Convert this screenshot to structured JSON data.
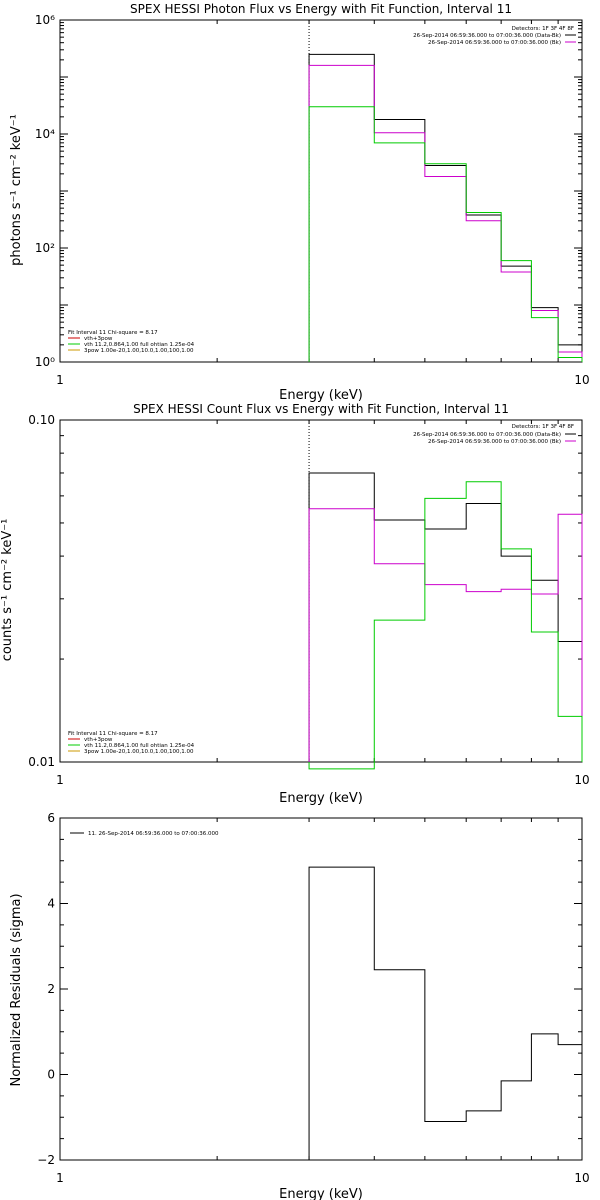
{
  "colors": {
    "background": "#ffffff",
    "axes": "#000000",
    "black_series": "#000000",
    "magenta_series": "#cc00cc",
    "green_series": "#00cc00",
    "red_series": "#cc0000",
    "orange_series": "#cc9900"
  },
  "chart_data": [
    {
      "type": "line",
      "title": "SPEX HESSI Photon Flux vs Energy with Fit Function, Interval 11",
      "xlabel": "Energy (keV)",
      "ylabel": "photons s⁻¹ cm⁻² keV⁻¹",
      "xscale": "log",
      "yscale": "log",
      "xlim": [
        1,
        10
      ],
      "ylim": [
        1,
        1000000
      ],
      "x_ticks": [
        {
          "value": 1,
          "label": "1"
        },
        {
          "value": 10,
          "label": "10"
        }
      ],
      "y_ticks": [
        {
          "value": 1,
          "label": "10⁰"
        },
        {
          "value": 100,
          "label": "10²"
        },
        {
          "value": 10000,
          "label": "10⁴"
        },
        {
          "value": 1000000,
          "label": "10⁶"
        }
      ],
      "marker_line_x": 3,
      "bin_edges": [
        3,
        4,
        5,
        6,
        7,
        8,
        9,
        10
      ],
      "series": [
        {
          "color": "#000000",
          "values": [
            250000,
            18000,
            2800,
            380,
            48,
            9,
            2
          ]
        },
        {
          "color": "#cc00cc",
          "values": [
            160000,
            10500,
            1800,
            300,
            38,
            8,
            1.5
          ]
        },
        {
          "color": "#00cc00",
          "values": [
            30000,
            7000,
            3000,
            420,
            60,
            6,
            1.2
          ]
        }
      ],
      "legend_top": {
        "header": "Detectors: 1F 3F 4F 8F",
        "entries": [
          {
            "label": "26-Sep-2014 06:59:36.000 to 07:00:36.000 (Data-Bk)",
            "color": "#000000"
          },
          {
            "label": "26-Sep-2014 06:59:36.000 to 07:00:36.000 (Bk)",
            "color": "#cc00cc"
          }
        ]
      },
      "legend_bottom": {
        "header": "Fit Interval 11   Chi-square = 8.17",
        "entries": [
          {
            "label": "vth+3pow",
            "color": "#cc0000"
          },
          {
            "label": "vth 11.2,0.864,1.00  full ohtian 1.25e-04",
            "color": "#00cc00"
          },
          {
            "label": "3pow 1.00e-20,1.00,10.0,1.00,100,1.00",
            "color": "#cc9900"
          }
        ]
      }
    },
    {
      "type": "line",
      "title": "SPEX HESSI Count Flux vs Energy with Fit Function, Interval 11",
      "xlabel": "Energy (keV)",
      "ylabel": "counts s⁻¹ cm⁻² keV⁻¹",
      "xscale": "log",
      "yscale": "log",
      "xlim": [
        1,
        10
      ],
      "ylim": [
        0.01,
        0.1
      ],
      "x_ticks": [
        {
          "value": 1,
          "label": "1"
        },
        {
          "value": 10,
          "label": "10"
        }
      ],
      "y_ticks": [
        {
          "value": 0.01,
          "label": "0.01"
        },
        {
          "value": 0.1,
          "label": "0.10"
        }
      ],
      "marker_line_x": 3,
      "bin_edges": [
        3,
        4,
        5,
        6,
        7,
        8,
        9,
        10
      ],
      "series": [
        {
          "color": "#000000",
          "values": [
            0.07,
            0.051,
            0.048,
            0.057,
            0.04,
            0.034,
            0.0225
          ]
        },
        {
          "color": "#cc00cc",
          "values": [
            0.055,
            0.038,
            0.033,
            0.0315,
            0.032,
            0.031,
            0.053
          ]
        },
        {
          "color": "#00cc00",
          "values": [
            0.009,
            0.026,
            0.059,
            0.066,
            0.042,
            0.024,
            0.0136
          ]
        }
      ],
      "legend_top": {
        "header": "Detectors: 1F 3F 4F 8F",
        "entries": [
          {
            "label": "26-Sep-2014 06:59:36.000 to 07:00:36.000 (Data-Bk)",
            "color": "#000000"
          },
          {
            "label": "26-Sep-2014 06:59:36.000 to 07:00:36.000 (Bk)",
            "color": "#cc00cc"
          }
        ]
      },
      "legend_bottom": {
        "header": "Fit Interval 11   Chi-square = 8.17",
        "entries": [
          {
            "label": "vth+3pow",
            "color": "#cc0000"
          },
          {
            "label": "vth 11.2,0.864,1.00  full ohtian 1.25e-04",
            "color": "#00cc00"
          },
          {
            "label": "3pow 1.00e-20,1.00,10.0,1.00,100,1.00",
            "color": "#cc9900"
          }
        ]
      }
    },
    {
      "type": "line",
      "title": "",
      "xlabel": "Energy (keV)",
      "ylabel": "Normalized Residuals (sigma)",
      "xscale": "log",
      "yscale": "linear",
      "xlim": [
        1,
        10
      ],
      "ylim": [
        -2,
        6
      ],
      "x_ticks": [
        {
          "value": 1,
          "label": "1"
        },
        {
          "value": 10,
          "label": "10"
        }
      ],
      "y_ticks": [
        {
          "value": -2,
          "label": "−2"
        },
        {
          "value": 0,
          "label": "0"
        },
        {
          "value": 2,
          "label": "2"
        },
        {
          "value": 4,
          "label": "4"
        },
        {
          "value": 6,
          "label": "6"
        }
      ],
      "bin_edges": [
        3,
        4,
        5,
        6,
        7,
        8,
        9,
        10
      ],
      "series": [
        {
          "color": "#000000",
          "values": [
            4.85,
            2.45,
            -1.1,
            -0.85,
            -0.15,
            0.95,
            0.7
          ]
        }
      ],
      "legend_top": {
        "header": "",
        "entries": [
          {
            "label": "11. 26-Sep-2014 06:59:36.000 to 07:00:36.000",
            "color": "#000000"
          }
        ]
      }
    }
  ]
}
